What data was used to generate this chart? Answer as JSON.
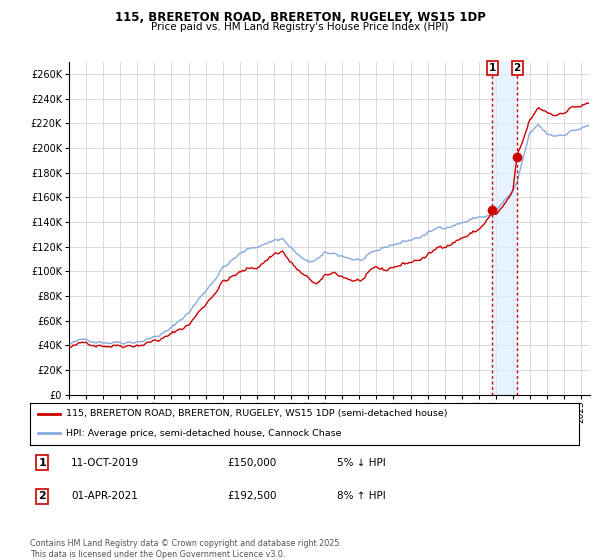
{
  "title": "115, BRERETON ROAD, BRERETON, RUGELEY, WS15 1DP",
  "subtitle": "Price paid vs. HM Land Registry's House Price Index (HPI)",
  "legend_line1": "115, BRERETON ROAD, BRERETON, RUGELEY, WS15 1DP (semi-detached house)",
  "legend_line2": "HPI: Average price, semi-detached house, Cannock Chase",
  "event1_date": "11-OCT-2019",
  "event1_price": "£150,000",
  "event1_hpi": "5% ↓ HPI",
  "event1_x": 2019.78,
  "event1_y": 150000,
  "event2_date": "01-APR-2021",
  "event2_price": "£192,500",
  "event2_hpi": "8% ↑ HPI",
  "event2_x": 2021.25,
  "event2_y": 192500,
  "footer": "Contains HM Land Registry data © Crown copyright and database right 2025.\nThis data is licensed under the Open Government Licence v3.0.",
  "xlim": [
    1995,
    2025.5
  ],
  "ylim": [
    0,
    270000
  ],
  "yticks": [
    0,
    20000,
    40000,
    60000,
    80000,
    100000,
    120000,
    140000,
    160000,
    180000,
    200000,
    220000,
    240000,
    260000
  ],
  "line_color_red": "#cc0000",
  "line_color_blue": "#88aadd",
  "shade_color": "#ddeeff",
  "grid_color": "#cccccc",
  "bg_color": "#ffffff",
  "marker_color_red": "#cc0000",
  "vline_color": "#cc0000"
}
